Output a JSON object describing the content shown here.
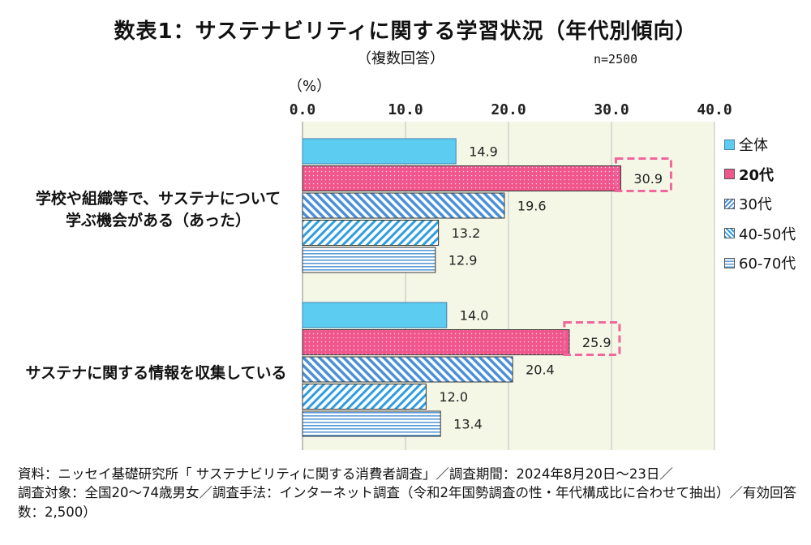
{
  "title": "数表1：サステナビリティに関する学習状況（年代別傾向）",
  "subtitle": "（複数回答）",
  "sample_size": "n=2500",
  "unit_label": "（%）",
  "source": "資料：ニッセイ基礎研究所「 サステナビリティに関する消費者調査」／調査期間：2024年8月20日～23日／\n調査対象：全国20～74歳男女／調査手法：インターネット調査（令和2年国勢調査の性・年代構成比に合わせて抽出）／有効回答数：2,500）",
  "category_labels": {
    "cat1_line1": "学校や組織等で、サステナについて",
    "cat1_line2": "学ぶ機会がある（あった）",
    "cat2": "サステナに関する情報を収集している"
  },
  "legend": {
    "s0": "全体",
    "s1": "20代",
    "s2": "30代",
    "s3": "40-50代",
    "s4": "60-70代"
  },
  "colors": {
    "s0": "#5ccdf0",
    "s1": "#f0558c",
    "s2": "#4a90d8",
    "s3": "#2f9ee0",
    "s4": "#5b9bd5",
    "plot_bg": "#f4f7e6",
    "highlight": "#f0679c"
  },
  "chart_data": {
    "type": "bar",
    "orientation": "horizontal",
    "categories": [
      "学校や組織等で、サステナについて学ぶ機会がある（あった）",
      "サステナに関する情報を収集している"
    ],
    "series": [
      {
        "name": "全体",
        "values": [
          14.9,
          14.0
        ]
      },
      {
        "name": "20代",
        "values": [
          30.9,
          25.9
        ]
      },
      {
        "name": "30代",
        "values": [
          19.6,
          20.4
        ]
      },
      {
        "name": "40-50代",
        "values": [
          13.2,
          12.0
        ]
      },
      {
        "name": "60-70代",
        "values": [
          12.9,
          13.4
        ]
      }
    ],
    "xlim": [
      0,
      40
    ],
    "ticks": [
      "0.0",
      "10.0",
      "20.0",
      "30.0",
      "40.0"
    ],
    "value_labels": [
      [
        "14.9",
        "30.9",
        "19.6",
        "13.2",
        "12.9"
      ],
      [
        "14.0",
        "25.9",
        "20.4",
        "12.0",
        "13.4"
      ]
    ],
    "grid": true,
    "legend_position": "right",
    "highlighted_series": "20代"
  }
}
